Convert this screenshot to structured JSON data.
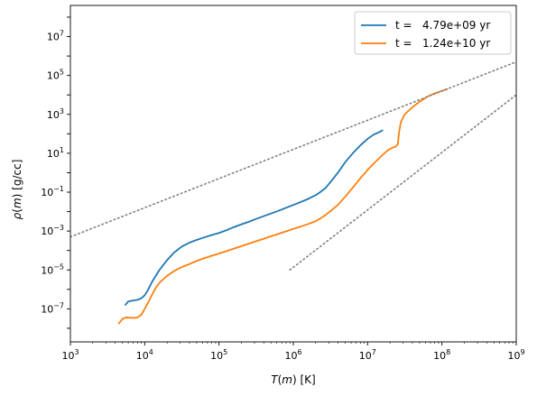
{
  "chart_data": {
    "type": "line",
    "xscale": "log",
    "yscale": "log",
    "xlim": [
      1000,
      1000000000
    ],
    "ylim": [
      2e-09,
      400000000.0
    ],
    "xlabel": {
      "var": "T",
      "arg": "m",
      "unit": "[K]"
    },
    "ylabel": {
      "var": "ρ",
      "arg": "m",
      "unit": "[g/cc]"
    },
    "x_ticks": [
      {
        "value": 1000,
        "base": "10",
        "exp": "3"
      },
      {
        "value": 10000,
        "base": "10",
        "exp": "4"
      },
      {
        "value": 100000,
        "base": "10",
        "exp": "5"
      },
      {
        "value": 1000000,
        "base": "10",
        "exp": "6"
      },
      {
        "value": 10000000,
        "base": "10",
        "exp": "7"
      },
      {
        "value": 100000000,
        "base": "10",
        "exp": "8"
      },
      {
        "value": 1000000000,
        "base": "10",
        "exp": "9"
      }
    ],
    "y_ticks": [
      {
        "value": 1e-07,
        "base": "10",
        "exp": "−7"
      },
      {
        "value": 1e-05,
        "base": "10",
        "exp": "−5"
      },
      {
        "value": 0.001,
        "base": "10",
        "exp": "−3"
      },
      {
        "value": 0.1,
        "base": "10",
        "exp": "−1"
      },
      {
        "value": 10,
        "base": "10",
        "exp": "1"
      },
      {
        "value": 1000,
        "base": "10",
        "exp": "3"
      },
      {
        "value": 100000,
        "base": "10",
        "exp": "5"
      },
      {
        "value": 10000000,
        "base": "10",
        "exp": "7"
      }
    ],
    "legend_position": "top-right",
    "series": [
      {
        "name": "t =   4.79e+09 yr",
        "color": "#1f77b4",
        "style": "solid",
        "x": [
          5500,
          6000,
          6800,
          8000,
          9000,
          10000,
          11000,
          12600,
          15800,
          20000,
          25000,
          31600,
          39800,
          50000,
          63100,
          79400,
          100000,
          125900,
          158500,
          199500,
          251200,
          316200,
          398100,
          501200,
          631000,
          794300,
          1000000,
          1259000,
          1585000,
          1995000,
          2300000,
          2700000,
          3200000,
          3980000,
          5000000,
          6310000,
          7940000,
          10000000,
          12000000,
          14500000,
          15800000
        ],
        "y": [
          1.6e-07,
          2.4e-07,
          2.6e-07,
          2.9e-07,
          3.5e-07,
          5e-07,
          9e-07,
          2.5e-06,
          1e-05,
          3.2e-05,
          8e-05,
          0.00016,
          0.00025,
          0.00035,
          0.00047,
          0.00062,
          0.0008,
          0.0011,
          0.0016,
          0.0022,
          0.003,
          0.0042,
          0.0058,
          0.008,
          0.011,
          0.0155,
          0.022,
          0.031,
          0.045,
          0.07,
          0.1,
          0.16,
          0.35,
          1.0,
          3.5,
          10,
          25,
          55,
          90,
          125,
          150
        ]
      },
      {
        "name": "t =   1.24e+10 yr",
        "color": "#ff7f0e",
        "style": "solid",
        "x": [
          4500,
          5000,
          5600,
          6300,
          7100,
          8000,
          9000,
          10000,
          11200,
          12600,
          14100,
          15800,
          20000,
          25100,
          31600,
          39800,
          50100,
          63100,
          79400,
          100000,
          125900,
          158500,
          199500,
          251200,
          316200,
          398100,
          501200,
          631000,
          794300,
          1000000,
          1259000,
          1585000,
          1995000,
          2300000,
          2700000,
          3200000,
          3980000,
          5010000,
          6310000,
          7940000,
          10000000,
          12600000,
          15800000,
          19000000,
          22000000,
          24000000,
          25500000,
          26500000,
          28000000,
          31600000,
          39800000,
          50100000,
          63100000,
          79400000,
          100000000,
          118000000
        ],
        "y": [
          1.8e-08,
          3e-08,
          3.6e-08,
          3.5e-08,
          3.4e-08,
          3.6e-08,
          5e-08,
          1e-07,
          2.2e-07,
          5.5e-07,
          1.2e-06,
          2.2e-06,
          5e-06,
          9e-06,
          1.4e-05,
          2e-05,
          2.9e-05,
          4e-05,
          5.3e-05,
          7e-05,
          9.3e-05,
          0.000125,
          0.000168,
          0.000225,
          0.0003,
          0.0004,
          0.00054,
          0.00072,
          0.00096,
          0.00129,
          0.0017,
          0.0023,
          0.0032,
          0.0044,
          0.0066,
          0.011,
          0.022,
          0.06,
          0.17,
          0.5,
          1.4,
          3.5,
          8,
          15,
          20,
          22,
          30,
          120,
          400,
          1000,
          2300,
          4500,
          8000,
          12000,
          16000,
          20000
        ]
      },
      {
        "name": "",
        "color": "#808080",
        "style": "dotted",
        "x": [
          1000,
          1000000000
        ],
        "y": [
          0.0005,
          500000
        ]
      },
      {
        "name": "",
        "color": "#808080",
        "style": "dotted",
        "x": [
          900000,
          1000000000
        ],
        "y": [
          1e-05,
          10000
        ]
      }
    ]
  }
}
